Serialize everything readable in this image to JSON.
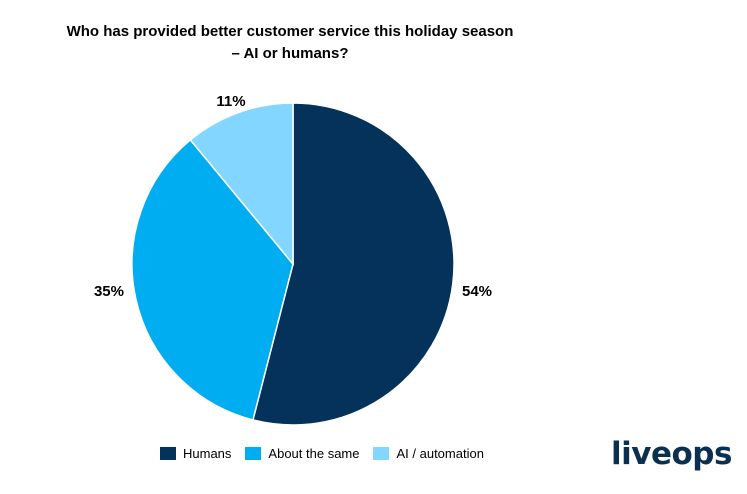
{
  "chart_data": {
    "type": "pie",
    "title": [
      "Who has provided better customer service this holiday season",
      "– AI or humans?"
    ],
    "categories": [
      "Humans",
      "About the same",
      "AI / automation"
    ],
    "values": [
      54,
      35,
      11
    ],
    "labels": [
      "54%",
      "35%",
      "11%"
    ],
    "colors": [
      "#04325a",
      "#00adf0",
      "#82d6ff"
    ],
    "start_angle_deg": 0,
    "direction": "clockwise",
    "legend_position": "bottom"
  },
  "brand": {
    "logo_text": "liveops",
    "color": "#0b2f4f"
  }
}
